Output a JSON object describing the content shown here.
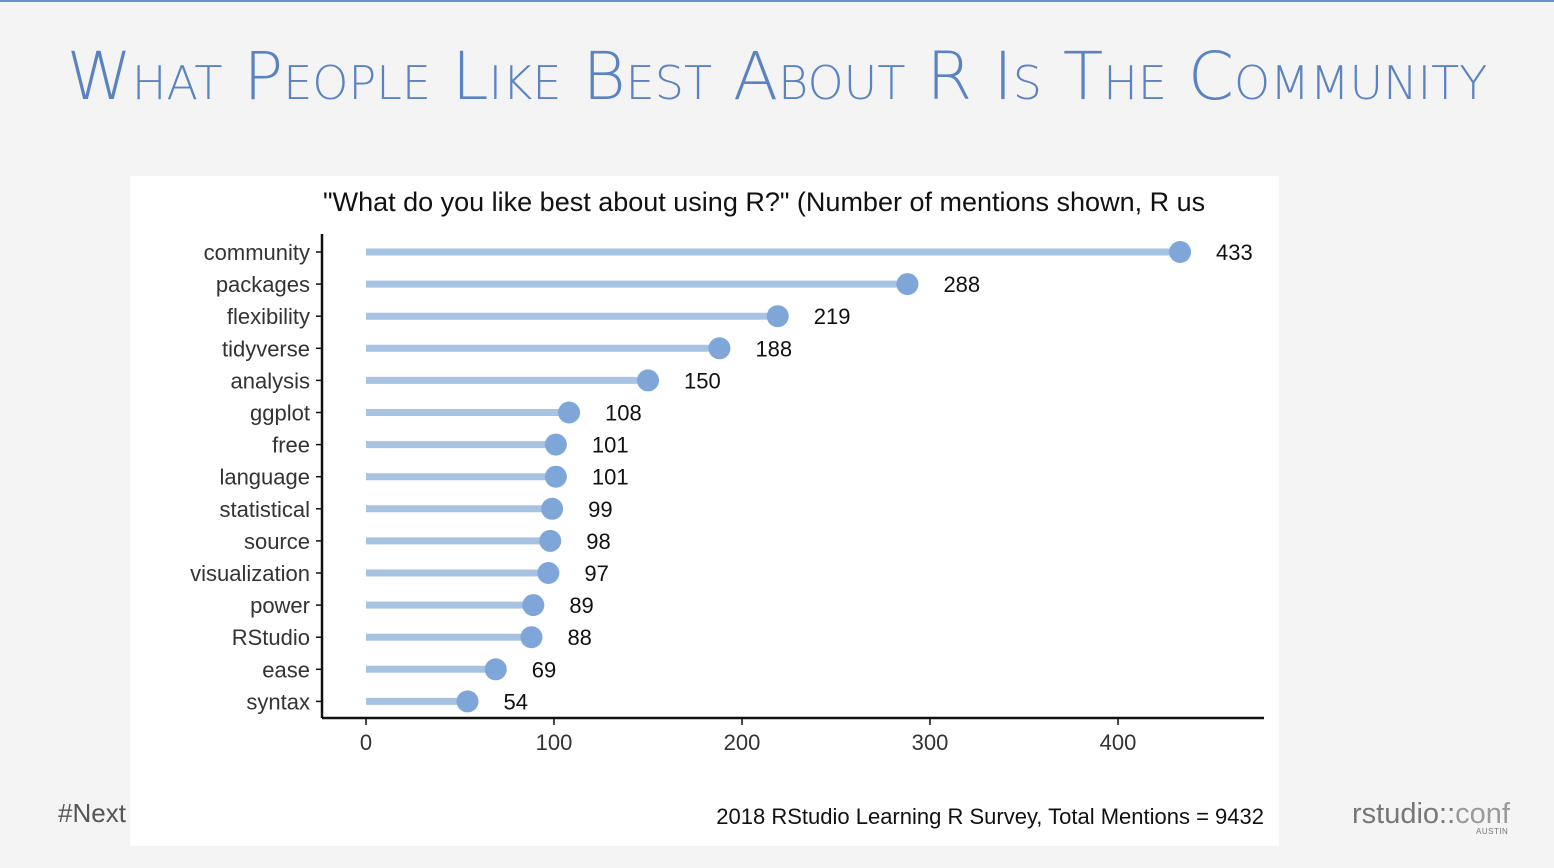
{
  "slide": {
    "title": "What People Like Best About R Is The Community",
    "footer_tag": "#Next",
    "logo_main": "rstudio::",
    "logo_conf": "conf",
    "logo_sub": "AUSTIN"
  },
  "colors": {
    "background": "#f4f4f4",
    "title": "#5b83c2",
    "stem": "#a7c3e3",
    "point": "#7fa6d8"
  },
  "chart_data": {
    "type": "lollipop",
    "title": "\"What do you like best about using R?\" (Number of mentions shown, R us",
    "caption": "2018 RStudio Learning R Survey, Total Mentions = 9432",
    "xlabel": "",
    "ylabel": "",
    "xlim": [
      0,
      460
    ],
    "xticks": [
      0,
      100,
      200,
      300,
      400
    ],
    "categories": [
      "community",
      "packages",
      "flexibility",
      "tidyverse",
      "analysis",
      "ggplot",
      "free",
      "language",
      "statistical",
      "source",
      "visualization",
      "power",
      "RStudio",
      "ease",
      "syntax"
    ],
    "values": [
      433,
      288,
      219,
      188,
      150,
      108,
      101,
      101,
      99,
      98,
      97,
      89,
      88,
      69,
      54
    ],
    "grid": false,
    "legend": "none"
  }
}
